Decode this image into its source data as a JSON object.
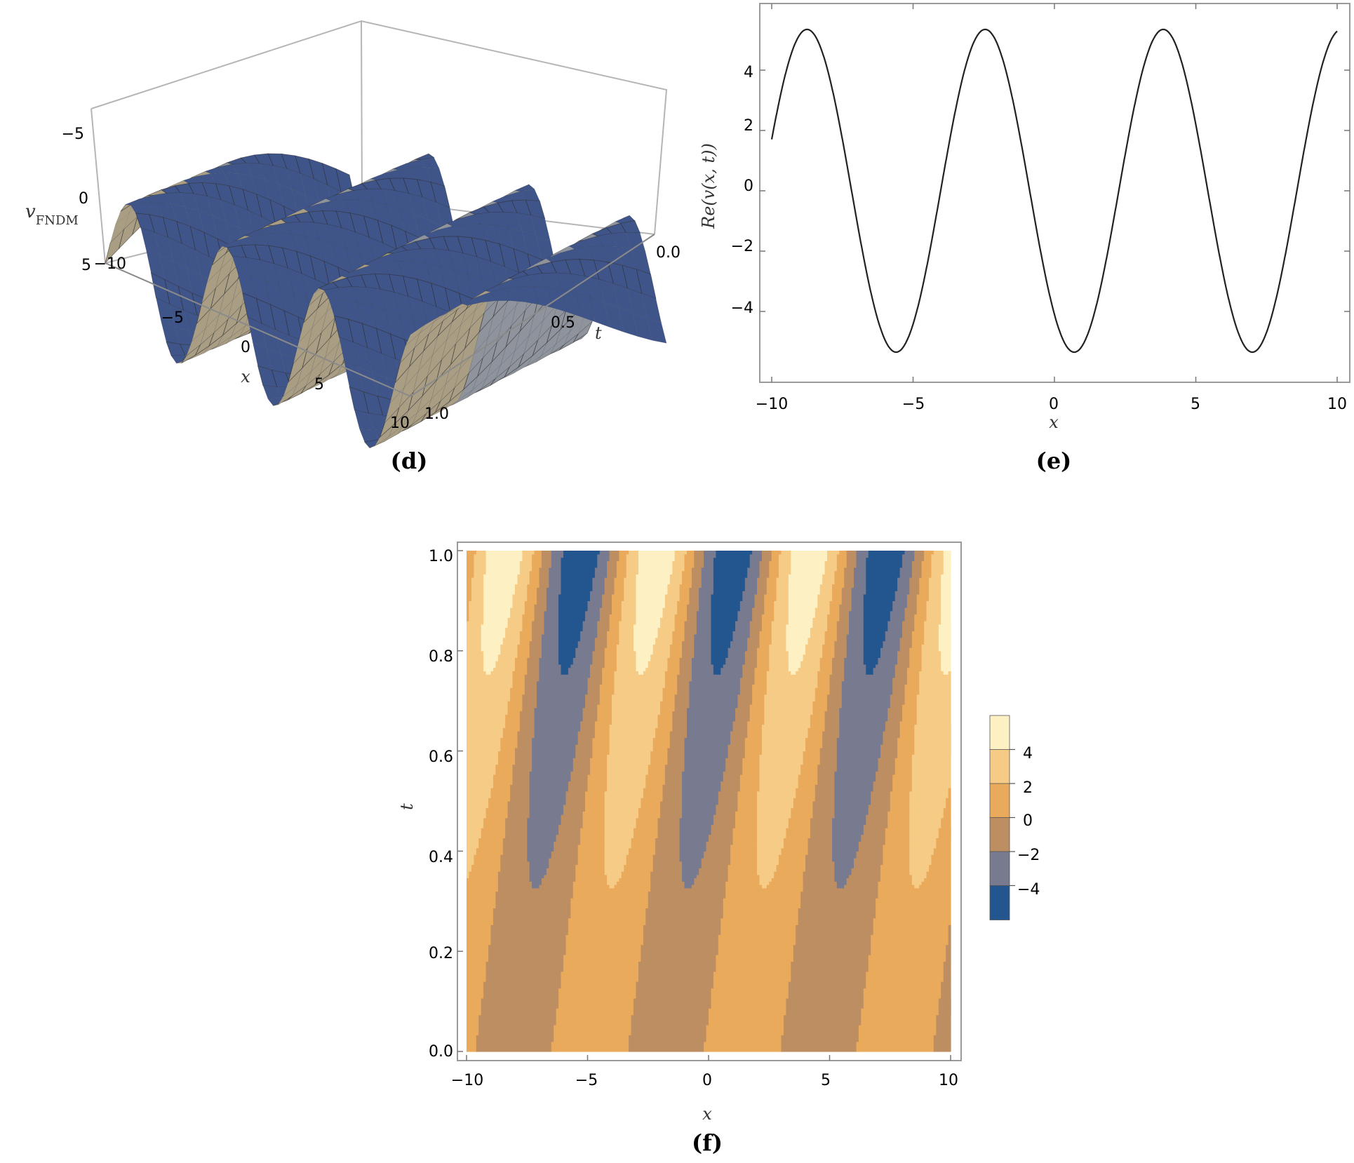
{
  "chart_data": [
    {
      "type": "surface3d",
      "caption": "(d)",
      "zlabel": "v",
      "zlabel_sub": "FNDM",
      "xlabel": "x",
      "tlabel": "t",
      "x_ticks": [
        "−10",
        "−5",
        "0",
        "5",
        "10"
      ],
      "t_ticks": [
        "0.0",
        "0.5",
        "1.0"
      ],
      "z_ticks": [
        "−5",
        "0",
        "5"
      ],
      "x_range": [
        -10,
        10
      ],
      "t_range": [
        0,
        1
      ],
      "z_range": [
        -5.4,
        5.4
      ],
      "colors": {
        "shadow": "#3f5489",
        "light": "#a99e84",
        "mesh": "#2a2a2a"
      }
    },
    {
      "type": "line",
      "caption": "(e)",
      "xlabel": "x",
      "ylabel": "Re(v(x, t))",
      "xlim": [
        -10,
        10
      ],
      "ylim": [
        -5.7,
        5.7
      ],
      "x_ticks": [
        "−10",
        "−5",
        "0",
        "5",
        "10"
      ],
      "y_ticks": [
        "4",
        "2",
        "0",
        "−2",
        "−4"
      ],
      "y_tick_values": [
        4,
        2,
        0,
        -2,
        -4
      ],
      "x_tick_values": [
        -10,
        -5,
        0,
        5,
        10
      ],
      "series": [
        {
          "amplitude": 5.35,
          "period": 6.3,
          "trough_x": 0.7,
          "x_start": -10,
          "x_end": 10
        }
      ],
      "extrema": {
        "maxima_x": [
          -8.75,
          -2.45,
          3.85
        ],
        "minima_x": [
          -5.6,
          0.7,
          7.0
        ],
        "max_value": 5.35,
        "min_value": -5.35
      }
    },
    {
      "type": "contour",
      "caption": "(f)",
      "xlabel": "x",
      "ylabel": "t",
      "xlim": [
        -10,
        10
      ],
      "ylim": [
        0,
        1
      ],
      "x_ticks": [
        "−10",
        "−5",
        "0",
        "5",
        "10"
      ],
      "y_ticks": [
        "0.0",
        "0.2",
        "0.4",
        "0.6",
        "0.8",
        "1.0"
      ],
      "legend_levels": [
        "4",
        "2",
        "0",
        "−2",
        "−4"
      ],
      "legend_placement": "right",
      "colors": [
        "#23568e",
        "#787a90",
        "#bd8e62",
        "#e9aa5c",
        "#f5cb86",
        "#fdf1c4"
      ]
    }
  ]
}
